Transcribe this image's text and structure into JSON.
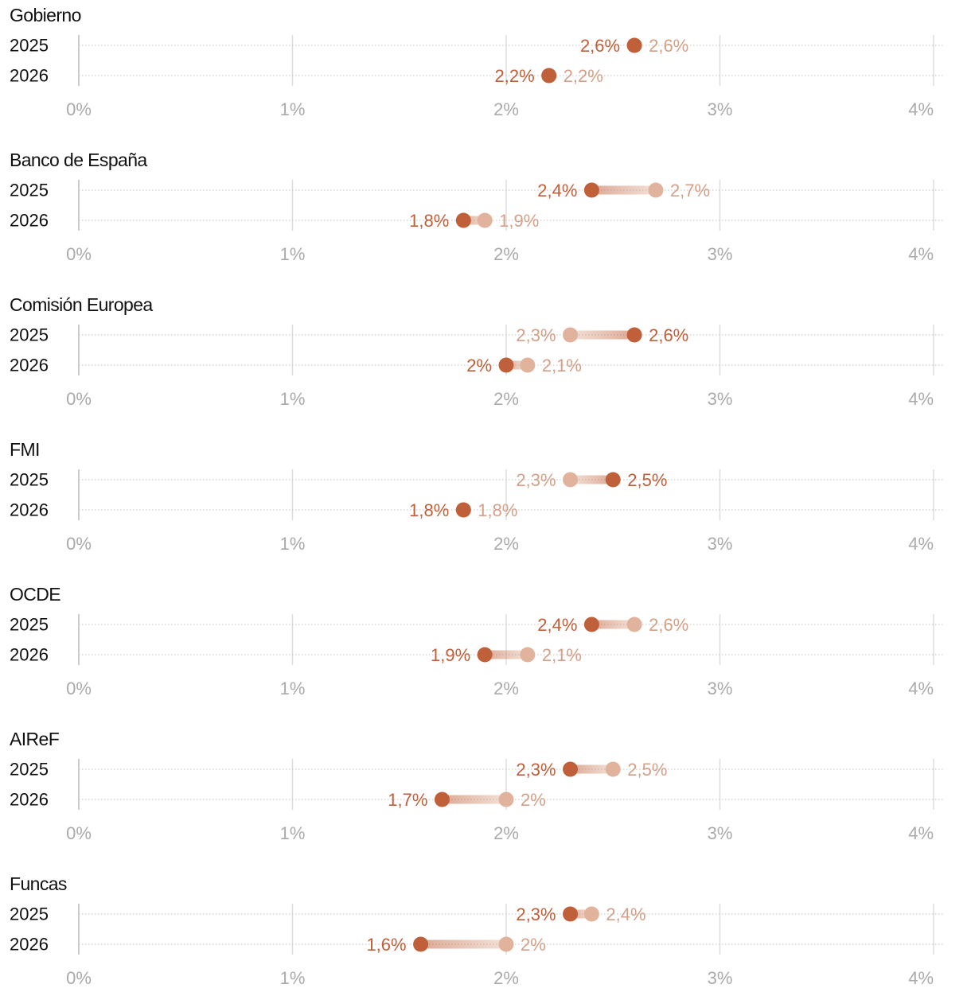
{
  "colors": {
    "current": "#c0603a",
    "previous": "#e2b39c",
    "current_label": "#c0603a",
    "previous_label": "#d4a088",
    "grid": "#dddddd",
    "row_line": "#cccccc",
    "axis_text": "#aaaaaa",
    "text": "#111111"
  },
  "chart_data": {
    "type": "dot-plot",
    "x_unit": "%",
    "xlim": [
      0,
      4
    ],
    "ticks": [
      {
        "value": 0,
        "label": "0%"
      },
      {
        "value": 1,
        "label": "1%"
      },
      {
        "value": 2,
        "label": "2%"
      },
      {
        "value": 3,
        "label": "3%"
      },
      {
        "value": 4,
        "label": "4%"
      }
    ],
    "series": [
      {
        "name": "current",
        "color": "#c0603a"
      },
      {
        "name": "previous",
        "color": "#e2b39c"
      }
    ],
    "panels": [
      {
        "title": "Gobierno",
        "rows": [
          {
            "year": "2025",
            "current": 2.6,
            "current_label": "2,6%",
            "previous": 2.6,
            "previous_label": "2,6%"
          },
          {
            "year": "2026",
            "current": 2.2,
            "current_label": "2,2%",
            "previous": 2.2,
            "previous_label": "2,2%"
          }
        ]
      },
      {
        "title": "Banco de España",
        "rows": [
          {
            "year": "2025",
            "current": 2.4,
            "current_label": "2,4%",
            "previous": 2.7,
            "previous_label": "2,7%"
          },
          {
            "year": "2026",
            "current": 1.8,
            "current_label": "1,8%",
            "previous": 1.9,
            "previous_label": "1,9%"
          }
        ]
      },
      {
        "title": "Comisión Europea",
        "rows": [
          {
            "year": "2025",
            "current": 2.6,
            "current_label": "2,6%",
            "previous": 2.3,
            "previous_label": "2,3%"
          },
          {
            "year": "2026",
            "current": 2.0,
            "current_label": "2%",
            "previous": 2.1,
            "previous_label": "2,1%"
          }
        ]
      },
      {
        "title": "FMI",
        "rows": [
          {
            "year": "2025",
            "current": 2.5,
            "current_label": "2,5%",
            "previous": 2.3,
            "previous_label": "2,3%"
          },
          {
            "year": "2026",
            "current": 1.8,
            "current_label": "1,8%",
            "previous": 1.8,
            "previous_label": "1,8%"
          }
        ]
      },
      {
        "title": "OCDE",
        "rows": [
          {
            "year": "2025",
            "current": 2.4,
            "current_label": "2,4%",
            "previous": 2.6,
            "previous_label": "2,6%"
          },
          {
            "year": "2026",
            "current": 1.9,
            "current_label": "1,9%",
            "previous": 2.1,
            "previous_label": "2,1%"
          }
        ]
      },
      {
        "title": "AIReF",
        "rows": [
          {
            "year": "2025",
            "current": 2.3,
            "current_label": "2,3%",
            "previous": 2.5,
            "previous_label": "2,5%"
          },
          {
            "year": "2026",
            "current": 1.7,
            "current_label": "1,7%",
            "previous": 2.0,
            "previous_label": "2%"
          }
        ]
      },
      {
        "title": "Funcas",
        "rows": [
          {
            "year": "2025",
            "current": 2.3,
            "current_label": "2,3%",
            "previous": 2.4,
            "previous_label": "2,4%"
          },
          {
            "year": "2026",
            "current": 1.6,
            "current_label": "1,6%",
            "previous": 2.0,
            "previous_label": "2%"
          }
        ]
      }
    ]
  }
}
